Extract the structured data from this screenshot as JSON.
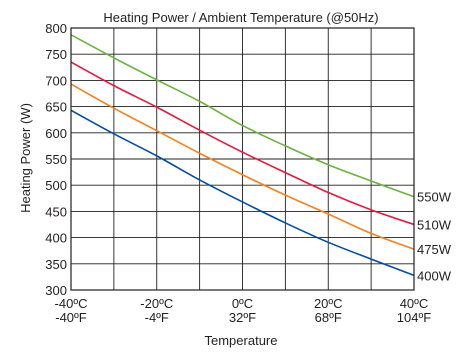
{
  "chart_data": {
    "type": "line",
    "title": "Heating Power / Ambient Temperature (@50Hz)",
    "xlabel": "Temperature",
    "ylabel": "Heating Power (W)",
    "x": [
      -40,
      -30,
      -20,
      -10,
      0,
      10,
      20,
      30,
      40
    ],
    "xlim": [
      -40,
      40
    ],
    "ylim": [
      300,
      800
    ],
    "grid": true,
    "x_ticks": [
      {
        "celsius": "-40ºC",
        "fahrenheit": "-40ºF",
        "value": -40
      },
      {
        "celsius": "-20ºC",
        "fahrenheit": "-4ºF",
        "value": -20
      },
      {
        "celsius": "0ºC",
        "fahrenheit": "32ºF",
        "value": 0
      },
      {
        "celsius": "20ºC",
        "fahrenheit": "68ºF",
        "value": 20
      },
      {
        "celsius": "40ºC",
        "fahrenheit": "104ºF",
        "value": 40
      }
    ],
    "x_grid_values": [
      -40,
      -30,
      -20,
      -10,
      0,
      10,
      20,
      30,
      40
    ],
    "y_ticks": [
      "300",
      "350",
      "400",
      "450",
      "500",
      "550",
      "600",
      "650",
      "700",
      "750",
      "800"
    ],
    "y_tick_values": [
      300,
      350,
      400,
      450,
      500,
      550,
      600,
      650,
      700,
      750,
      800
    ],
    "series": [
      {
        "name": "550W",
        "color": "#6cb33f",
        "values": [
          787,
          743,
          701,
          660,
          614,
          575,
          539,
          508,
          478
        ]
      },
      {
        "name": "510W",
        "color": "#e8193c",
        "values": [
          735,
          690,
          649,
          605,
          563,
          524,
          486,
          453,
          425
        ]
      },
      {
        "name": "475W",
        "color": "#f58220",
        "values": [
          693,
          647,
          604,
          561,
          520,
          481,
          445,
          408,
          378
        ]
      },
      {
        "name": "400W",
        "color": "#034ea2",
        "values": [
          643,
          598,
          556,
          510,
          468,
          428,
          391,
          359,
          328
        ]
      }
    ]
  }
}
